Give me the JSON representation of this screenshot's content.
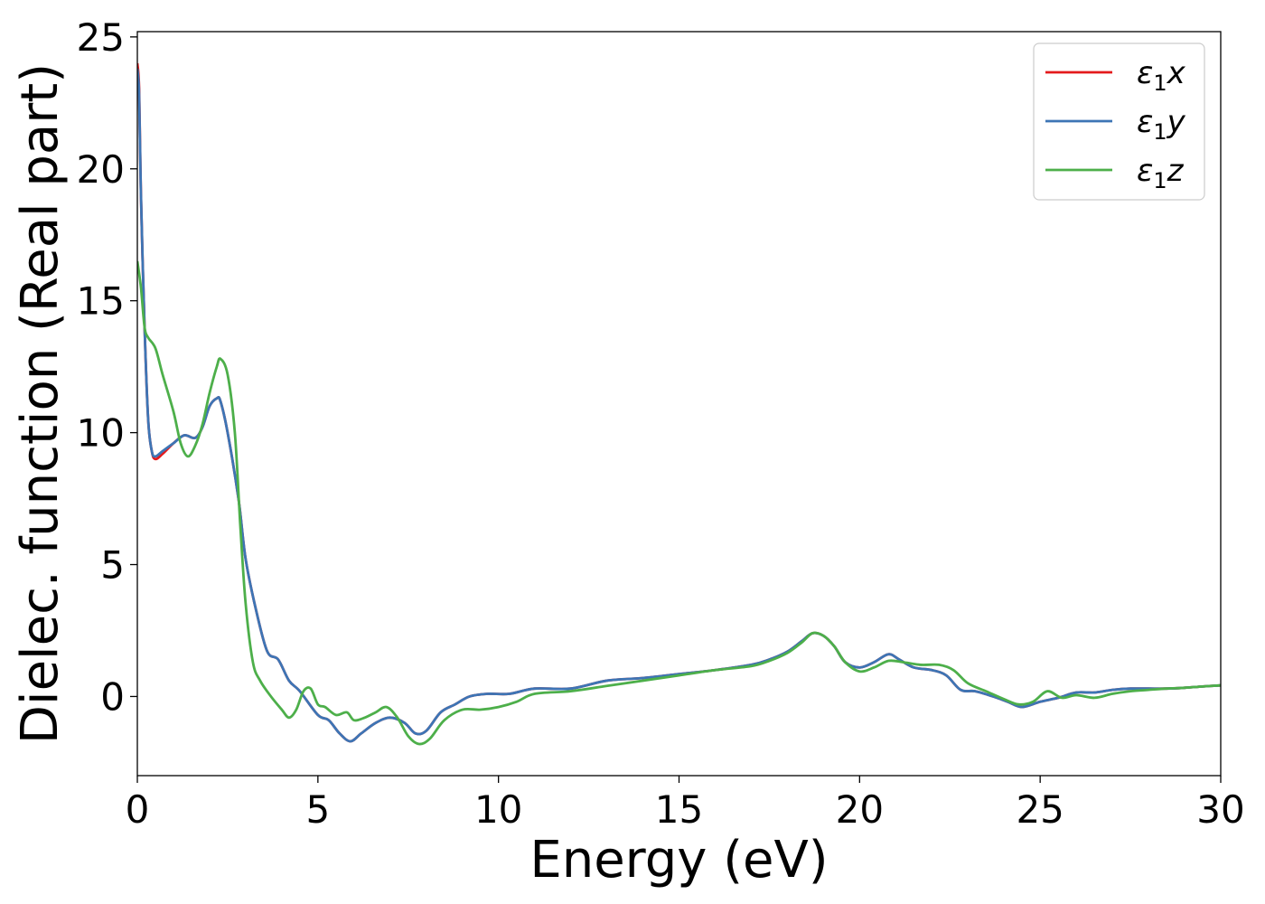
{
  "chart_data": {
    "type": "line",
    "title": "",
    "xlabel": "Energy (eV)",
    "ylabel": "Dielec. function (Real part)",
    "xlim": [
      0,
      30
    ],
    "ylim": [
      -3,
      25.2
    ],
    "xticks": [
      0,
      5,
      10,
      15,
      20,
      25,
      30
    ],
    "yticks": [
      0,
      5,
      10,
      15,
      20,
      25
    ],
    "grid": false,
    "legend_position": "top-right",
    "series": [
      {
        "name": "ε₁x",
        "label_base": "ε",
        "label_sub": "1",
        "label_tail": "x",
        "color": "#e41a1c",
        "x": [
          0.0,
          0.05,
          0.1,
          0.2,
          0.3,
          0.4,
          0.5,
          0.7,
          1.0,
          1.3,
          1.6,
          1.8,
          2.0,
          2.2,
          2.3,
          2.5,
          2.8,
          3.0,
          3.3,
          3.6,
          3.9,
          4.2,
          4.5,
          5.0,
          5.3,
          5.6,
          5.9,
          6.2,
          6.6,
          7.0,
          7.4,
          7.7,
          8.0,
          8.4,
          8.8,
          9.2,
          9.7,
          10.3,
          11.0,
          12.0,
          13.0,
          14.0,
          15.0,
          16.0,
          17.0,
          17.5,
          18.0,
          18.4,
          18.7,
          19.0,
          19.3,
          19.6,
          20.0,
          20.4,
          20.8,
          21.1,
          21.5,
          22.0,
          22.4,
          22.8,
          23.2,
          23.7,
          24.1,
          24.5,
          25.0,
          25.5,
          26.0,
          26.5,
          27.0,
          27.5,
          28.0,
          28.5,
          29.0,
          29.5,
          30.0
        ],
        "y": [
          24.0,
          23.0,
          19.0,
          14.0,
          10.5,
          9.3,
          9.0,
          9.2,
          9.6,
          9.9,
          9.8,
          10.2,
          11.0,
          11.3,
          11.2,
          10.0,
          7.5,
          5.2,
          3.2,
          1.7,
          1.4,
          0.6,
          0.2,
          -0.7,
          -0.9,
          -1.4,
          -1.7,
          -1.4,
          -1.0,
          -0.8,
          -1.0,
          -1.4,
          -1.3,
          -0.6,
          -0.3,
          0.0,
          0.1,
          0.1,
          0.3,
          0.3,
          0.6,
          0.7,
          0.85,
          1.0,
          1.2,
          1.4,
          1.7,
          2.1,
          2.4,
          2.3,
          1.9,
          1.3,
          1.1,
          1.3,
          1.6,
          1.4,
          1.1,
          1.0,
          0.8,
          0.25,
          0.2,
          0.0,
          -0.2,
          -0.4,
          -0.2,
          -0.05,
          0.15,
          0.15,
          0.25,
          0.3,
          0.3,
          0.3,
          0.33,
          0.38,
          0.42
        ]
      },
      {
        "name": "ε₁y",
        "label_base": "ε",
        "label_sub": "1",
        "label_tail": "y",
        "color": "#3d75b5",
        "x": [
          0.0,
          0.05,
          0.1,
          0.2,
          0.3,
          0.4,
          0.5,
          0.7,
          1.0,
          1.3,
          1.6,
          1.8,
          2.0,
          2.2,
          2.3,
          2.5,
          2.8,
          3.0,
          3.3,
          3.6,
          3.9,
          4.2,
          4.5,
          5.0,
          5.3,
          5.6,
          5.9,
          6.2,
          6.6,
          7.0,
          7.4,
          7.7,
          8.0,
          8.4,
          8.8,
          9.2,
          9.7,
          10.3,
          11.0,
          12.0,
          13.0,
          14.0,
          15.0,
          16.0,
          17.0,
          17.5,
          18.0,
          18.4,
          18.7,
          19.0,
          19.3,
          19.6,
          20.0,
          20.4,
          20.8,
          21.1,
          21.5,
          22.0,
          22.4,
          22.8,
          23.2,
          23.7,
          24.1,
          24.5,
          25.0,
          25.5,
          26.0,
          26.5,
          27.0,
          27.5,
          28.0,
          28.5,
          29.0,
          29.5,
          30.0
        ],
        "y": [
          23.8,
          22.8,
          19.0,
          14.0,
          10.5,
          9.3,
          9.1,
          9.3,
          9.6,
          9.9,
          9.8,
          10.2,
          11.0,
          11.3,
          11.2,
          10.0,
          7.5,
          5.2,
          3.2,
          1.7,
          1.4,
          0.6,
          0.2,
          -0.7,
          -0.9,
          -1.4,
          -1.7,
          -1.4,
          -1.0,
          -0.8,
          -1.0,
          -1.4,
          -1.3,
          -0.6,
          -0.3,
          0.0,
          0.1,
          0.1,
          0.3,
          0.3,
          0.6,
          0.7,
          0.85,
          1.0,
          1.2,
          1.4,
          1.7,
          2.1,
          2.4,
          2.3,
          1.9,
          1.3,
          1.1,
          1.3,
          1.6,
          1.4,
          1.1,
          1.0,
          0.8,
          0.25,
          0.2,
          0.0,
          -0.2,
          -0.4,
          -0.2,
          -0.05,
          0.15,
          0.15,
          0.25,
          0.3,
          0.3,
          0.3,
          0.33,
          0.38,
          0.42
        ]
      },
      {
        "name": "ε₁z",
        "label_base": "ε",
        "label_sub": "1",
        "label_tail": "z",
        "color": "#4daf4a",
        "x": [
          0.0,
          0.1,
          0.2,
          0.3,
          0.5,
          0.7,
          1.0,
          1.2,
          1.4,
          1.6,
          1.8,
          2.0,
          2.2,
          2.3,
          2.5,
          2.7,
          2.85,
          3.0,
          3.2,
          3.4,
          3.7,
          4.0,
          4.2,
          4.4,
          4.6,
          4.8,
          5.0,
          5.2,
          5.5,
          5.8,
          6.0,
          6.3,
          6.6,
          6.9,
          7.2,
          7.5,
          7.8,
          8.1,
          8.5,
          9.0,
          9.5,
          10.0,
          10.5,
          11.0,
          12.0,
          13.0,
          14.0,
          15.0,
          16.0,
          17.0,
          17.5,
          18.0,
          18.4,
          18.7,
          19.0,
          19.3,
          19.6,
          20.0,
          20.4,
          20.8,
          21.2,
          21.7,
          22.2,
          22.6,
          23.0,
          23.5,
          24.0,
          24.4,
          24.8,
          25.2,
          25.6,
          26.0,
          26.5,
          27.0,
          27.5,
          28.0,
          28.5,
          29.0,
          29.5,
          30.0
        ],
        "y": [
          16.5,
          15.5,
          14.0,
          13.6,
          13.2,
          12.2,
          10.8,
          9.6,
          9.1,
          9.5,
          10.3,
          11.5,
          12.5,
          12.8,
          12.2,
          10.0,
          6.5,
          3.5,
          1.3,
          0.6,
          0.0,
          -0.5,
          -0.8,
          -0.5,
          0.2,
          0.3,
          -0.3,
          -0.4,
          -0.7,
          -0.6,
          -0.9,
          -0.8,
          -0.6,
          -0.4,
          -0.8,
          -1.5,
          -1.8,
          -1.6,
          -0.9,
          -0.5,
          -0.5,
          -0.4,
          -0.2,
          0.1,
          0.2,
          0.4,
          0.6,
          0.8,
          1.0,
          1.15,
          1.35,
          1.65,
          2.05,
          2.4,
          2.3,
          1.9,
          1.3,
          0.95,
          1.1,
          1.35,
          1.3,
          1.2,
          1.2,
          1.0,
          0.5,
          0.2,
          -0.1,
          -0.3,
          -0.2,
          0.2,
          -0.05,
          0.05,
          -0.05,
          0.1,
          0.2,
          0.25,
          0.3,
          0.33,
          0.38,
          0.42
        ]
      }
    ]
  }
}
